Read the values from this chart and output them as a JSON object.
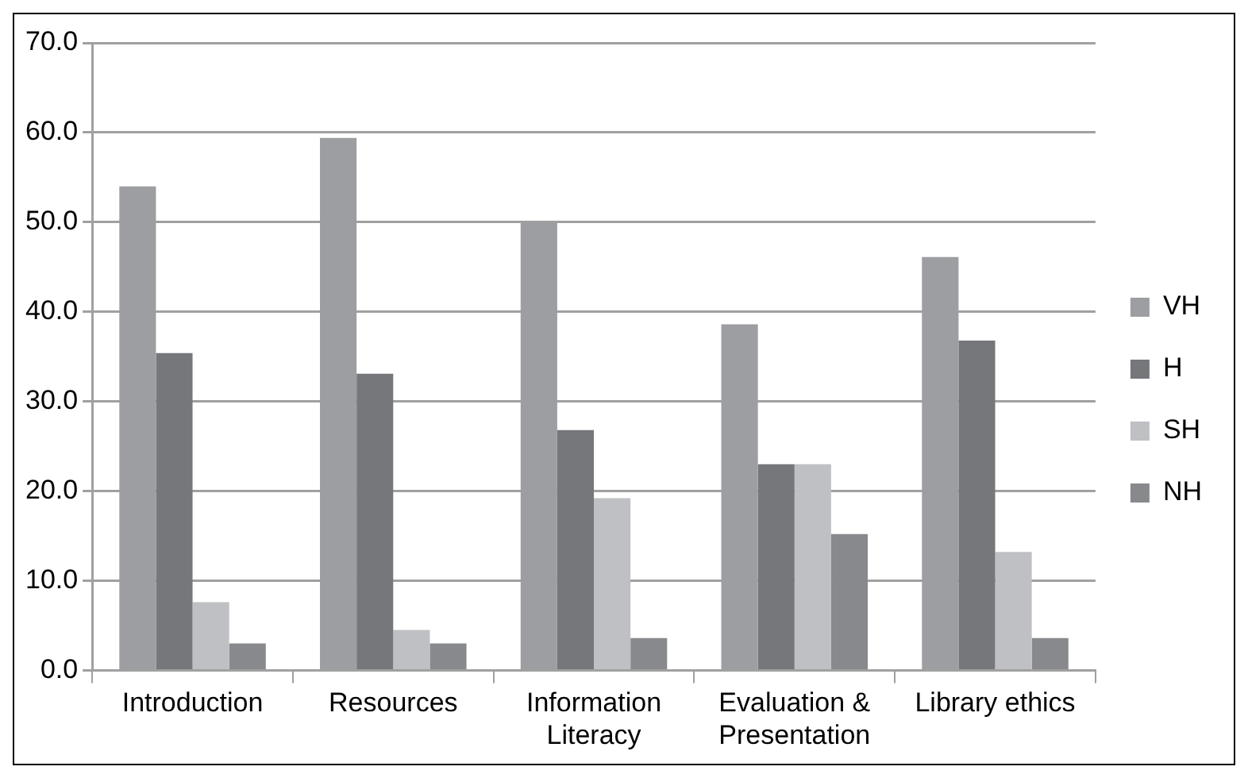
{
  "chart_data": {
    "type": "bar",
    "categories": [
      "Introduction",
      "Resources",
      "Information Literacy",
      "Evaluation & Presentation",
      "Library ethics"
    ],
    "series": [
      {
        "name": "VH",
        "color": "#9d9ea2",
        "values": [
          54.0,
          59.4,
          50.0,
          38.6,
          46.1
        ]
      },
      {
        "name": "H",
        "color": "#76777b",
        "values": [
          35.4,
          33.1,
          26.8,
          23.0,
          36.8
        ]
      },
      {
        "name": "SH",
        "color": "#bfc0c4",
        "values": [
          7.6,
          4.5,
          19.2,
          23.0,
          13.2
        ]
      },
      {
        "name": "NH",
        "color": "#88898d",
        "values": [
          3.0,
          3.0,
          3.6,
          15.2,
          3.6
        ]
      }
    ],
    "ylim": [
      0,
      70
    ],
    "yticks": [
      {
        "value": 0,
        "label": "0.0"
      },
      {
        "value": 10,
        "label": "10.0"
      },
      {
        "value": 20,
        "label": "20.0"
      },
      {
        "value": 30,
        "label": "30.0"
      },
      {
        "value": 40,
        "label": "40.0"
      },
      {
        "value": 50,
        "label": "50.0"
      },
      {
        "value": 60,
        "label": "60.0"
      },
      {
        "value": 70,
        "label": "70.0"
      }
    ],
    "grid": "y",
    "legend": "right"
  }
}
